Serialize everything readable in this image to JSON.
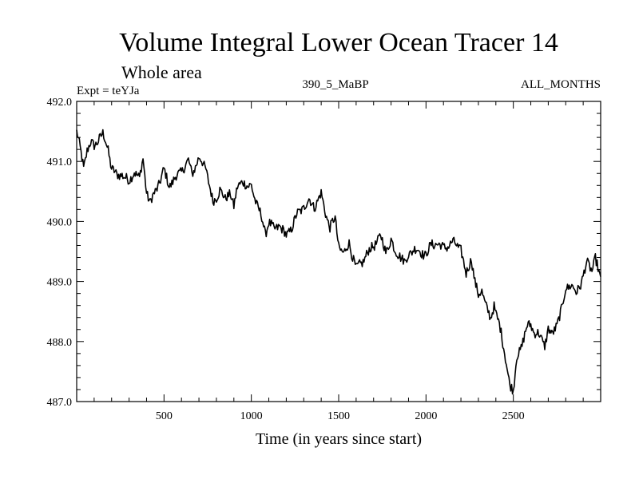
{
  "chart_data": {
    "type": "line",
    "title": "Volume Integral Lower Ocean Tracer 14",
    "subtitle": "Whole area",
    "expt_label": "Expt = teYJa",
    "center_label": "390_5_MaBP",
    "right_label": "ALL_MONTHS",
    "xlabel": "Time (in years since start)",
    "ylabel": "",
    "xlim": [
      0,
      3000
    ],
    "ylim": [
      487.0,
      492.0
    ],
    "x_ticks": [
      500,
      1000,
      1500,
      2000,
      2500
    ],
    "x_tick_labels": [
      "500",
      "1000",
      "1500",
      "2000",
      "2500"
    ],
    "y_ticks": [
      487.0,
      488.0,
      489.0,
      490.0,
      491.0,
      492.0
    ],
    "y_tick_labels": [
      "487.0",
      "488.0",
      "489.0",
      "490.0",
      "491.0",
      "492.0"
    ],
    "series": [
      {
        "name": "Volume Integral Lower Ocean Tracer 14",
        "x": [
          0,
          20,
          40,
          60,
          80,
          100,
          130,
          150,
          180,
          200,
          230,
          260,
          300,
          330,
          360,
          380,
          400,
          420,
          450,
          480,
          500,
          530,
          560,
          600,
          640,
          660,
          700,
          740,
          760,
          780,
          800,
          820,
          850,
          880,
          900,
          920,
          950,
          980,
          1000,
          1030,
          1060,
          1080,
          1100,
          1130,
          1160,
          1200,
          1230,
          1260,
          1300,
          1330,
          1360,
          1380,
          1400,
          1420,
          1450,
          1480,
          1500,
          1530,
          1560,
          1600,
          1640,
          1660,
          1700,
          1740,
          1770,
          1800,
          1820,
          1850,
          1880,
          1900,
          1930,
          1960,
          2000,
          2030,
          2060,
          2100,
          2150,
          2200,
          2230,
          2260,
          2280,
          2300,
          2320,
          2340,
          2370,
          2390,
          2420,
          2440,
          2460,
          2480,
          2500,
          2520,
          2550,
          2580,
          2600,
          2620,
          2650,
          2680,
          2700,
          2720,
          2750,
          2780,
          2800,
          2830,
          2860,
          2890,
          2920,
          2950,
          2970,
          3000
        ],
        "values": [
          491.5,
          491.2,
          490.9,
          491.2,
          491.3,
          491.25,
          491.4,
          491.45,
          491.2,
          490.9,
          490.75,
          490.8,
          490.65,
          490.85,
          490.7,
          491.05,
          490.5,
          490.3,
          490.5,
          490.7,
          490.85,
          490.6,
          490.7,
          490.85,
          491.0,
          490.8,
          491.05,
          490.9,
          490.6,
          490.3,
          490.4,
          490.55,
          490.35,
          490.5,
          490.25,
          490.55,
          490.7,
          490.55,
          490.6,
          490.3,
          490.05,
          489.8,
          490.0,
          489.85,
          489.95,
          489.75,
          489.9,
          490.1,
          490.25,
          490.35,
          490.25,
          490.35,
          490.45,
          490.2,
          489.9,
          490.05,
          489.6,
          489.45,
          489.65,
          489.2,
          489.35,
          489.45,
          489.6,
          489.75,
          489.5,
          489.7,
          489.5,
          489.45,
          489.3,
          489.45,
          489.55,
          489.5,
          489.45,
          489.6,
          489.65,
          489.55,
          489.65,
          489.55,
          489.1,
          489.4,
          489.0,
          488.75,
          488.85,
          488.65,
          488.35,
          488.6,
          488.3,
          487.95,
          487.65,
          487.3,
          487.15,
          487.75,
          487.95,
          488.25,
          488.3,
          488.15,
          488.1,
          487.95,
          488.2,
          488.1,
          488.3,
          488.55,
          488.9,
          488.95,
          488.8,
          489.0,
          489.3,
          489.2,
          489.4,
          489.0
        ]
      }
    ]
  }
}
